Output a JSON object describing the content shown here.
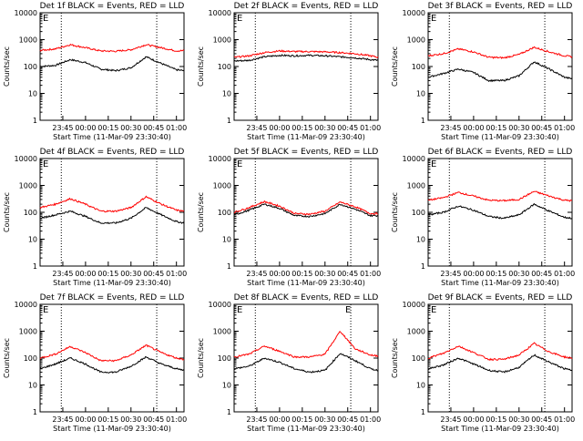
{
  "figure": {
    "start_time_label": "Start Time (11-Mar-09 23:30:40)",
    "ylabel": "Counts/sec",
    "x_tick_labels": [
      "23:45",
      "00:00",
      "00:15",
      "00:30",
      "00:45",
      "01:00"
    ],
    "y_tick_labels": [
      "1",
      "10",
      "100",
      "1000",
      "10000"
    ]
  },
  "colors": {
    "events": "#000000",
    "lld": "#ff0000",
    "axes": "#000000",
    "background": "#ffffff"
  },
  "chart_data": [
    {
      "type": "line",
      "title": "Det 1f BLACK = Events, RED = LLD",
      "flags": [
        "E"
      ],
      "ylabel": "Counts/sec",
      "xlabel": "Start Time (11-Mar-09 23:30:40)",
      "yscale": "log",
      "x_minutes": [
        0,
        10,
        20,
        30,
        40,
        50,
        60,
        70,
        80,
        90,
        95
      ],
      "series": [
        {
          "name": "Events",
          "color": "#000000",
          "values": [
            100,
            110,
            180,
            140,
            80,
            70,
            90,
            230,
            130,
            75,
            70
          ]
        },
        {
          "name": "LLD",
          "color": "#ff0000",
          "values": [
            400,
            450,
            650,
            500,
            380,
            370,
            420,
            650,
            500,
            380,
            390
          ]
        }
      ]
    },
    {
      "type": "line",
      "title": "Det 2f BLACK = Events, RED = LLD",
      "flags": [
        "E"
      ],
      "ylabel": "Counts/sec",
      "xlabel": "Start Time (11-Mar-09 23:30:40)",
      "yscale": "log",
      "x_minutes": [
        0,
        10,
        20,
        30,
        40,
        50,
        60,
        70,
        80,
        90,
        95
      ],
      "series": [
        {
          "name": "Events",
          "color": "#000000",
          "values": [
            160,
            170,
            230,
            260,
            250,
            260,
            250,
            230,
            210,
            180,
            170
          ]
        },
        {
          "name": "LLD",
          "color": "#ff0000",
          "values": [
            220,
            250,
            330,
            380,
            360,
            360,
            350,
            330,
            300,
            250,
            220
          ]
        }
      ]
    },
    {
      "type": "line",
      "title": "Det 3f BLACK = Events, RED = LLD",
      "flags": [
        "E"
      ],
      "ylabel": "Counts/sec",
      "xlabel": "Start Time (11-Mar-09 23:30:40)",
      "yscale": "log",
      "x_minutes": [
        0,
        10,
        20,
        30,
        40,
        50,
        60,
        70,
        80,
        90,
        95
      ],
      "series": [
        {
          "name": "Events",
          "color": "#000000",
          "values": [
            40,
            55,
            80,
            60,
            30,
            30,
            45,
            150,
            80,
            40,
            35
          ]
        },
        {
          "name": "LLD",
          "color": "#ff0000",
          "values": [
            250,
            300,
            450,
            350,
            220,
            210,
            280,
            520,
            350,
            250,
            230
          ]
        }
      ]
    },
    {
      "type": "line",
      "title": "Det 4f BLACK = Events, RED = LLD",
      "flags": [
        "E"
      ],
      "ylabel": "Counts/sec",
      "xlabel": "Start Time (11-Mar-09 23:30:40)",
      "yscale": "log",
      "x_minutes": [
        0,
        10,
        20,
        30,
        40,
        50,
        60,
        70,
        80,
        90,
        95
      ],
      "series": [
        {
          "name": "Events",
          "color": "#000000",
          "values": [
            60,
            80,
            110,
            70,
            40,
            40,
            60,
            150,
            80,
            45,
            40
          ]
        },
        {
          "name": "LLD",
          "color": "#ff0000",
          "values": [
            150,
            200,
            320,
            200,
            110,
            110,
            150,
            380,
            200,
            120,
            110
          ]
        }
      ]
    },
    {
      "type": "line",
      "title": "Det 5f BLACK = Events, RED = LLD",
      "flags": [
        "E"
      ],
      "ylabel": "Counts/sec",
      "xlabel": "Start Time (11-Mar-09 23:30:40)",
      "yscale": "log",
      "x_minutes": [
        0,
        10,
        20,
        30,
        40,
        50,
        60,
        70,
        80,
        90,
        95
      ],
      "series": [
        {
          "name": "Events",
          "color": "#000000",
          "values": [
            80,
            120,
            200,
            140,
            75,
            70,
            90,
            200,
            130,
            75,
            75
          ]
        },
        {
          "name": "LLD",
          "color": "#ff0000",
          "values": [
            100,
            150,
            250,
            170,
            90,
            85,
            110,
            240,
            160,
            90,
            90
          ]
        }
      ]
    },
    {
      "type": "line",
      "title": "Det 6f BLACK = Events, RED = LLD",
      "flags": [
        "E"
      ],
      "ylabel": "Counts/sec",
      "xlabel": "Start Time (11-Mar-09 23:30:40)",
      "yscale": "log",
      "x_minutes": [
        0,
        10,
        20,
        30,
        40,
        50,
        60,
        70,
        80,
        90,
        95
      ],
      "series": [
        {
          "name": "Events",
          "color": "#000000",
          "values": [
            80,
            100,
            170,
            120,
            70,
            60,
            80,
            200,
            110,
            65,
            60
          ]
        },
        {
          "name": "LLD",
          "color": "#ff0000",
          "values": [
            280,
            350,
            550,
            400,
            280,
            270,
            300,
            600,
            400,
            280,
            270
          ]
        }
      ]
    },
    {
      "type": "line",
      "title": "Det 7f BLACK = Events, RED = LLD",
      "flags": [
        "E"
      ],
      "ylabel": "Counts/sec",
      "xlabel": "Start Time (11-Mar-09 23:30:40)",
      "yscale": "log",
      "x_minutes": [
        0,
        10,
        20,
        30,
        40,
        50,
        60,
        70,
        80,
        90,
        95
      ],
      "series": [
        {
          "name": "Events",
          "color": "#000000",
          "values": [
            40,
            60,
            100,
            60,
            30,
            30,
            50,
            110,
            60,
            40,
            35
          ]
        },
        {
          "name": "LLD",
          "color": "#ff0000",
          "values": [
            100,
            140,
            270,
            160,
            80,
            80,
            130,
            300,
            160,
            100,
            90
          ]
        }
      ]
    },
    {
      "type": "line",
      "title": "Det 8f BLACK = Events, RED = LLD",
      "flags": [
        "E",
        "E"
      ],
      "ylabel": "Counts/sec",
      "xlabel": "Start Time (11-Mar-09 23:30:40)",
      "yscale": "log",
      "x_minutes": [
        0,
        10,
        20,
        30,
        40,
        50,
        60,
        70,
        80,
        90,
        95
      ],
      "series": [
        {
          "name": "Events",
          "color": "#000000",
          "values": [
            40,
            50,
            100,
            70,
            40,
            30,
            35,
            150,
            80,
            40,
            35
          ]
        },
        {
          "name": "LLD",
          "color": "#ff0000",
          "values": [
            110,
            140,
            280,
            180,
            110,
            110,
            140,
            1000,
            220,
            130,
            120
          ]
        }
      ]
    },
    {
      "type": "line",
      "title": "Det 9f BLACK = Events, RED = LLD",
      "flags": [
        "E"
      ],
      "ylabel": "Counts/sec",
      "xlabel": "Start Time (11-Mar-09 23:30:40)",
      "yscale": "log",
      "x_minutes": [
        0,
        10,
        20,
        30,
        40,
        50,
        60,
        70,
        80,
        90,
        95
      ],
      "series": [
        {
          "name": "Events",
          "color": "#000000",
          "values": [
            40,
            55,
            100,
            60,
            35,
            30,
            45,
            130,
            70,
            40,
            35
          ]
        },
        {
          "name": "LLD",
          "color": "#ff0000",
          "values": [
            100,
            150,
            280,
            160,
            90,
            90,
            130,
            350,
            170,
            110,
            100
          ]
        }
      ]
    }
  ]
}
